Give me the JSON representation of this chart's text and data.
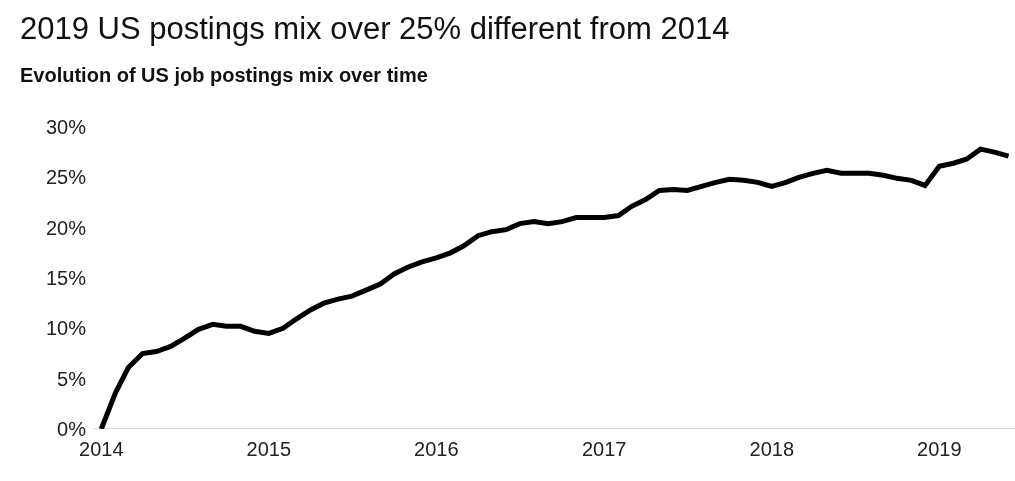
{
  "chart_data": {
    "type": "line",
    "title": "2019 US postings mix over 25% different from 2014",
    "subtitle": "Evolution of US job postings mix over time",
    "x": [
      "2014-01",
      "2014-02",
      "2014-03",
      "2014-04",
      "2014-05",
      "2014-06",
      "2014-07",
      "2014-08",
      "2014-09",
      "2014-10",
      "2014-11",
      "2014-12",
      "2015-01",
      "2015-02",
      "2015-03",
      "2015-04",
      "2015-05",
      "2015-06",
      "2015-07",
      "2015-08",
      "2015-09",
      "2015-10",
      "2015-11",
      "2015-12",
      "2016-01",
      "2016-02",
      "2016-03",
      "2016-04",
      "2016-05",
      "2016-06",
      "2016-07",
      "2016-08",
      "2016-09",
      "2016-10",
      "2016-11",
      "2016-12",
      "2017-01",
      "2017-02",
      "2017-03",
      "2017-04",
      "2017-05",
      "2017-06",
      "2017-07",
      "2017-08",
      "2017-09",
      "2017-10",
      "2017-11",
      "2017-12",
      "2018-01",
      "2018-02",
      "2018-03",
      "2018-04",
      "2018-05",
      "2018-06",
      "2018-07",
      "2018-08",
      "2018-09",
      "2018-10",
      "2018-11",
      "2018-12",
      "2019-01",
      "2019-02",
      "2019-03",
      "2019-04",
      "2019-05",
      "2019-06"
    ],
    "series": [
      {
        "color": "#000000",
        "values": [
          0,
          3.6,
          6.1,
          7.5,
          7.7,
          8.2,
          9.0,
          9.9,
          10.4,
          10.2,
          10.2,
          9.7,
          9.5,
          10.0,
          10.9,
          11.8,
          12.5,
          12.9,
          13.2,
          13.8,
          14.4,
          15.4,
          16.1,
          16.6,
          17.0,
          17.5,
          18.2,
          19.2,
          19.6,
          19.8,
          20.4,
          20.6,
          20.4,
          20.6,
          21.0,
          21.0,
          21.0,
          21.2,
          22.1,
          22.8,
          23.7,
          23.8,
          23.7,
          24.1,
          24.5,
          24.8,
          24.7,
          24.5,
          24.1,
          24.5,
          25.0,
          25.4,
          25.7,
          25.4,
          25.4,
          25.4,
          25.2,
          24.9,
          24.7,
          24.2,
          26.1,
          26.4,
          26.8,
          27.8,
          27.5,
          27.1
        ]
      }
    ],
    "xlim": [
      "2013-12-14",
      "2019-06-15"
    ],
    "xticks": [
      "2014",
      "2015",
      "2016",
      "2017",
      "2018",
      "2019"
    ],
    "ylim": [
      0,
      30
    ],
    "yticks": [
      {
        "value": 0,
        "label": "0%"
      },
      {
        "value": 5,
        "label": "5%"
      },
      {
        "value": 10,
        "label": "10%"
      },
      {
        "value": 15,
        "label": "15%"
      },
      {
        "value": 20,
        "label": "20%"
      },
      {
        "value": 25,
        "label": "25%"
      },
      {
        "value": 30,
        "label": "30%"
      }
    ],
    "grid": false,
    "legend": false,
    "marker": "none",
    "line_style": "solid"
  }
}
